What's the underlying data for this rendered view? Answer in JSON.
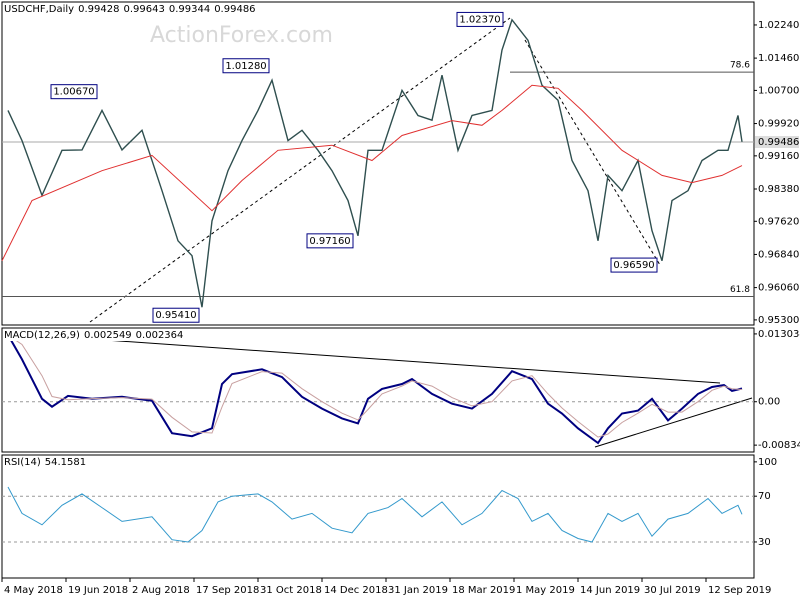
{
  "chart_data": [
    {
      "type": "line",
      "symbol": "USDCHF,Daily",
      "ohlc": [
        0.99428,
        0.99643,
        0.99344,
        0.99486
      ],
      "watermark": "ActionForex.com",
      "xlim": [
        0,
        376
      ],
      "ylim": [
        0.9518,
        1.0278
      ],
      "yticks": [
        {
          "value": 1.0224,
          "label": "1.02240"
        },
        {
          "value": 1.0146,
          "label": "1.01460"
        },
        {
          "value": 1.007,
          "label": "1.00700"
        },
        {
          "value": 0.9992,
          "label": "0.99920"
        },
        {
          "value": 0.9916,
          "label": "0.99160"
        },
        {
          "value": 0.9838,
          "label": "0.98380"
        },
        {
          "value": 0.9762,
          "label": "0.97620"
        },
        {
          "value": 0.9684,
          "label": "0.96840"
        },
        {
          "value": 0.9606,
          "label": "0.96060"
        },
        {
          "value": 0.953,
          "label": "0.95300"
        }
      ],
      "series": [
        {
          "color": "#2f4f4f",
          "x": [
            3,
            10,
            20,
            30,
            40,
            50,
            60,
            70,
            80,
            88,
            95,
            100,
            105,
            113,
            120,
            128,
            135,
            143,
            150,
            158,
            165,
            173,
            178,
            183,
            190,
            200,
            208,
            215,
            220,
            228,
            235,
            245,
            250,
            255,
            263,
            270,
            278,
            285,
            293,
            298,
            303,
            310,
            318,
            325,
            330,
            335,
            343,
            350,
            358,
            363,
            368,
            370
          ],
          "values": [
            1.0023,
            0.9952,
            0.9823,
            0.9929,
            0.993,
            1.0023,
            0.993,
            0.9976,
            0.9834,
            0.9716,
            0.9681,
            0.956,
            0.9763,
            0.9881,
            0.9952,
            1.0023,
            1.0094,
            0.9952,
            0.9976,
            0.9929,
            0.9881,
            0.9811,
            0.9728,
            0.9929,
            0.9929,
            1.007,
            1.0011,
            1.0,
            1.0106,
            0.9929,
            1.0011,
            1.0023,
            1.0165,
            1.0236,
            1.0188,
            1.0082,
            1.0047,
            0.9905,
            0.9834,
            0.9716,
            0.987,
            0.9834,
            0.9905,
            0.974,
            0.9669,
            0.9811,
            0.9834,
            0.9905,
            0.9929,
            0.9929,
            1.0011,
            0.9949
          ]
        },
        {
          "color": "#e03030",
          "x": [
            0,
            15,
            50,
            75,
            105,
            120,
            138,
            165,
            185,
            200,
            225,
            240,
            250,
            265,
            278,
            290,
            310,
            330,
            345,
            360,
            370
          ],
          "values": [
            0.9669,
            0.9811,
            0.9881,
            0.9917,
            0.9787,
            0.9858,
            0.9929,
            0.9941,
            0.9905,
            0.9964,
            0.9999,
            0.9988,
            1.0023,
            1.0082,
            1.0075,
            1.0023,
            0.9929,
            0.987,
            0.9853,
            0.987,
            0.9893
          ]
        }
      ],
      "annotations": [
        {
          "text": "1.00670",
          "x": 50,
          "y": 1.0067
        },
        {
          "text": "1.01280",
          "x": 136,
          "y": 1.0128
        },
        {
          "text": "0.95410",
          "x": 101,
          "y": 0.9541
        },
        {
          "text": "0.97160",
          "x": 178,
          "y": 0.9716
        },
        {
          "text": "1.02370",
          "x": 253,
          "y": 1.0237
        },
        {
          "text": "0.96590",
          "x": 330,
          "y": 0.9659
        }
      ],
      "levels": [
        {
          "label": "78.6",
          "value": 1.0113,
          "x": 254
        },
        {
          "label": "61.8",
          "value": 0.9585,
          "x": 0
        }
      ]
    },
    {
      "type": "line",
      "title": "MACD(12,26,9)",
      "title_values": [
        0.002549,
        0.002364
      ],
      "xlim": [
        0,
        376
      ],
      "ylim": [
        -0.00966,
        0.01417
      ],
      "yticks": [
        0.013034,
        {
          "value": 0,
          "label": "0.00"
        },
        -0.00834
      ],
      "grid_values": [
        0
      ],
      "series": [
        {
          "color": "#000080",
          "x": [
            3,
            10,
            20,
            25,
            33,
            45,
            60,
            75,
            85,
            95,
            105,
            110,
            115,
            130,
            140,
            150,
            160,
            170,
            178,
            183,
            190,
            200,
            205,
            215,
            225,
            235,
            245,
            255,
            265,
            273,
            280,
            288,
            298,
            303,
            310,
            318,
            325,
            333,
            340,
            348,
            355,
            361,
            365,
            370
          ],
          "values": [
            0.01285,
            0.00813,
            0.00057,
            -0.00095,
            0.00113,
            0.00057,
            0.00095,
            0.00019,
            -0.00605,
            -0.00662,
            -0.0051,
            0.0034,
            0.00529,
            0.00624,
            0.00473,
            0.00095,
            -0.00132,
            -0.00321,
            -0.00416,
            0.00057,
            0.00246,
            0.0034,
            0.00435,
            0.00151,
            -0.00038,
            -0.00132,
            0.00151,
            0.00586,
            0.00435,
            -0.00038,
            -0.00227,
            -0.0051,
            -0.00794,
            -0.0051,
            -0.00227,
            -0.0017,
            0.00057,
            -0.00359,
            -0.00132,
            0.00151,
            0.00284,
            0.00321,
            0.00208,
            0.00255
          ]
        },
        {
          "color": "#c8a0a0",
          "x": [
            3,
            10,
            20,
            25,
            33,
            45,
            60,
            75,
            85,
            95,
            105,
            110,
            115,
            130,
            140,
            150,
            160,
            170,
            178,
            183,
            190,
            200,
            205,
            215,
            225,
            235,
            245,
            255,
            265,
            273,
            280,
            288,
            298,
            303,
            310,
            318,
            325,
            333,
            340,
            348,
            355,
            361,
            365,
            370
          ],
          "values": [
            0.0128,
            0.011,
            0.005,
            0.001,
            0.0004,
            0.0006,
            0.0008,
            0.0005,
            -0.003,
            -0.0058,
            -0.006,
            -0.001,
            0.0035,
            0.0058,
            0.0055,
            0.0025,
            0.0,
            -0.0022,
            -0.0035,
            -0.0015,
            0.0015,
            0.003,
            0.004,
            0.003,
            0.0008,
            -0.0008,
            0.0,
            0.004,
            0.005,
            0.0015,
            -0.0012,
            -0.0038,
            -0.0068,
            -0.0062,
            -0.004,
            -0.0022,
            -0.0005,
            -0.002,
            -0.002,
            0.0,
            0.0022,
            0.003,
            0.0025,
            0.00236
          ]
        }
      ]
    },
    {
      "type": "line",
      "title": "RSI(14)",
      "title_values": [
        54.1581
      ],
      "xlim": [
        0,
        376
      ],
      "ylim": [
        -1.5,
        106
      ],
      "yticks": [
        100,
        70,
        30
      ],
      "grid_values": [
        70,
        30
      ],
      "xticks": [
        {
          "value": 0,
          "label": "4 May 2018"
        },
        {
          "value": 32,
          "label": "19 Jun 2018"
        },
        {
          "value": 64,
          "label": "2 Aug 2018"
        },
        {
          "value": 96,
          "label": "17 Sep 2018"
        },
        {
          "value": 128,
          "label": "31 Oct 2018"
        },
        {
          "value": 160,
          "label": "14 Dec 2018"
        },
        {
          "value": 192,
          "label": "31 Jan 2019"
        },
        {
          "value": 224,
          "label": "18 Mar 2019"
        },
        {
          "value": 256,
          "label": "1 May 2019"
        },
        {
          "value": 288,
          "label": "14 Jun 2019"
        },
        {
          "value": 320,
          "label": "30 Jul 2019"
        },
        {
          "value": 352,
          "label": "12 Sep 2019"
        }
      ],
      "series": [
        {
          "color": "#3399cc",
          "x": [
            3,
            10,
            20,
            30,
            40,
            50,
            60,
            75,
            85,
            93,
            100,
            108,
            115,
            128,
            135,
            145,
            155,
            165,
            175,
            183,
            193,
            200,
            210,
            220,
            230,
            240,
            250,
            258,
            265,
            273,
            280,
            288,
            295,
            303,
            310,
            318,
            325,
            333,
            343,
            353,
            360,
            368,
            370
          ],
          "values": [
            78,
            55,
            45,
            62,
            72,
            60,
            48,
            52,
            32,
            30,
            40,
            65,
            70,
            72,
            65,
            50,
            55,
            42,
            38,
            55,
            60,
            68,
            52,
            65,
            45,
            55,
            75,
            68,
            48,
            55,
            40,
            33,
            30,
            55,
            48,
            55,
            35,
            50,
            55,
            68,
            55,
            62,
            54.16
          ]
        }
      ]
    }
  ]
}
